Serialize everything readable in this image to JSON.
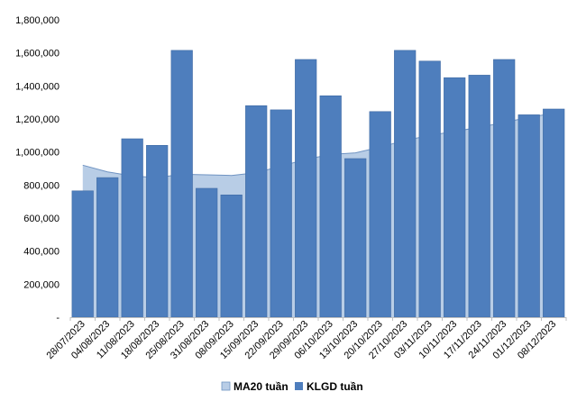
{
  "chart_data": {
    "type": "bar",
    "title": "",
    "xlabel": "",
    "ylabel": "",
    "ylim": [
      0,
      1800000
    ],
    "y_ticks": [
      {
        "value": 0,
        "label": "-"
      },
      {
        "value": 200000,
        "label": "200,000"
      },
      {
        "value": 400000,
        "label": "400,000"
      },
      {
        "value": 600000,
        "label": "600,000"
      },
      {
        "value": 800000,
        "label": "800,000"
      },
      {
        "value": 1000000,
        "label": "1,000,000"
      },
      {
        "value": 1200000,
        "label": "1,200,000"
      },
      {
        "value": 1400000,
        "label": "1,400,000"
      },
      {
        "value": 1600000,
        "label": "1,600,000"
      },
      {
        "value": 1800000,
        "label": "1,800,000"
      }
    ],
    "categories": [
      "28/07/2023",
      "04/08/2023",
      "11/08/2023",
      "18/08/2023",
      "25/08/2023",
      "31/08/2023",
      "08/09/2023",
      "15/09/2023",
      "22/09/2023",
      "29/09/2023",
      "06/10/2023",
      "13/10/2023",
      "20/10/2023",
      "27/10/2023",
      "03/11/2023",
      "10/11/2023",
      "17/11/2023",
      "24/11/2023",
      "01/12/2023",
      "08/12/2023"
    ],
    "grid": false,
    "legend_position": "bottom",
    "series": [
      {
        "name": "MA20 tuần",
        "type": "area",
        "color": "#b8cde6",
        "line_color": "#6f93c2",
        "values": [
          920000,
          880000,
          855000,
          845000,
          865000,
          862000,
          858000,
          875000,
          915000,
          955000,
          985000,
          995000,
          1030000,
          1070000,
          1100000,
          1125000,
          1150000,
          1180000,
          1210000,
          1235000
        ]
      },
      {
        "name": "KLGD tuần",
        "type": "bar",
        "color": "#4e7ebd",
        "values": [
          765000,
          845000,
          1080000,
          1040000,
          1615000,
          780000,
          740000,
          1280000,
          1255000,
          1560000,
          1340000,
          960000,
          1245000,
          1615000,
          1550000,
          1450000,
          1465000,
          1560000,
          1225000,
          1260000
        ]
      }
    ]
  }
}
